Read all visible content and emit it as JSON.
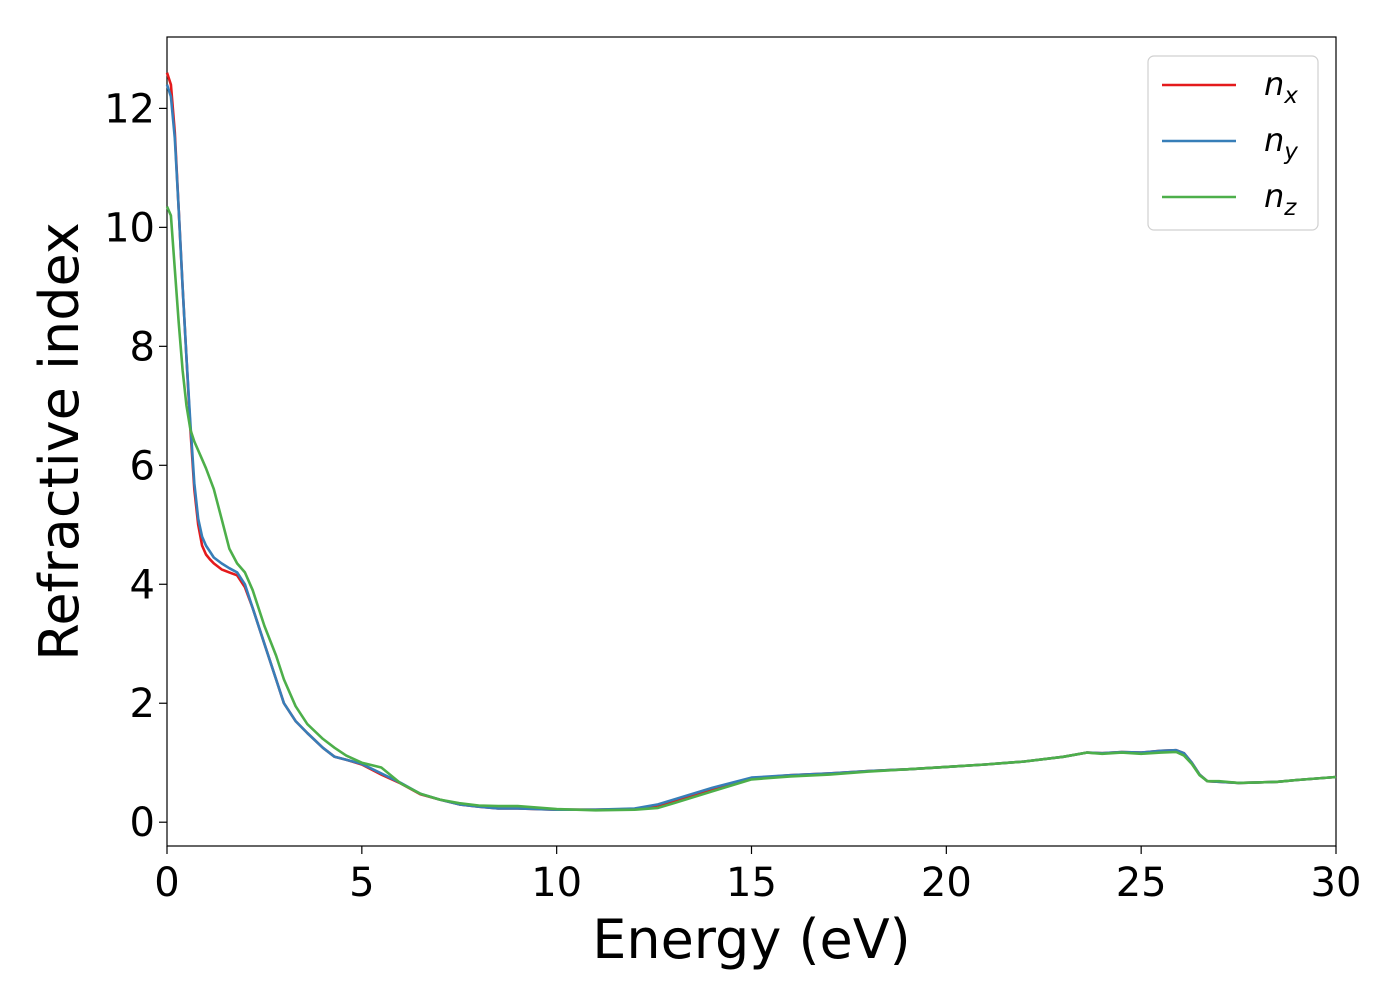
{
  "chart_data": {
    "type": "line",
    "title": "",
    "xlabel": "Energy (eV)",
    "ylabel": "Refractive index",
    "xlim": [
      0,
      30
    ],
    "ylim": [
      -0.4,
      13.2
    ],
    "xticks": [
      0,
      5,
      10,
      15,
      20,
      25,
      30
    ],
    "yticks": [
      0,
      2,
      4,
      6,
      8,
      10,
      12
    ],
    "grid": false,
    "legend_position": "top-right",
    "series": [
      {
        "name": "n",
        "subscript": "x",
        "color": "#e41a1c",
        "x": [
          0,
          0.1,
          0.2,
          0.3,
          0.4,
          0.5,
          0.6,
          0.7,
          0.8,
          0.9,
          1.0,
          1.1,
          1.2,
          1.4,
          1.6,
          1.8,
          2.0,
          2.2,
          2.5,
          2.8,
          3.0,
          3.3,
          3.6,
          4.0,
          4.3,
          4.6,
          5.0,
          5.5,
          6.0,
          6.5,
          7.0,
          7.5,
          8.0,
          8.5,
          9.0,
          10.0,
          11.0,
          12.0,
          12.6,
          13.0,
          14.0,
          15.0,
          16.0,
          17.0,
          18.0,
          19.0,
          20.0,
          21.0,
          22.0,
          23.0,
          23.6,
          24.0,
          24.5,
          25.0,
          25.5,
          25.9,
          26.1,
          26.3,
          26.5,
          26.7,
          27.0,
          27.5,
          28.0,
          28.5,
          29.0,
          30.0
        ],
        "y": [
          12.6,
          12.4,
          11.6,
          10.3,
          9.0,
          7.8,
          6.6,
          5.6,
          5.0,
          4.65,
          4.5,
          4.42,
          4.35,
          4.25,
          4.2,
          4.15,
          3.95,
          3.6,
          3.0,
          2.4,
          2.0,
          1.7,
          1.5,
          1.25,
          1.1,
          1.05,
          0.97,
          0.8,
          0.65,
          0.47,
          0.38,
          0.3,
          0.26,
          0.23,
          0.23,
          0.21,
          0.21,
          0.22,
          0.28,
          0.35,
          0.55,
          0.74,
          0.79,
          0.82,
          0.86,
          0.89,
          0.93,
          0.97,
          1.02,
          1.1,
          1.17,
          1.16,
          1.18,
          1.17,
          1.2,
          1.21,
          1.16,
          1.0,
          0.8,
          0.69,
          0.68,
          0.66,
          0.67,
          0.68,
          0.71,
          0.76
        ]
      },
      {
        "name": "n",
        "subscript": "y",
        "color": "#377eb8",
        "x": [
          0,
          0.1,
          0.2,
          0.3,
          0.4,
          0.5,
          0.6,
          0.7,
          0.8,
          0.9,
          1.0,
          1.1,
          1.2,
          1.4,
          1.6,
          1.8,
          2.0,
          2.2,
          2.5,
          2.8,
          3.0,
          3.3,
          3.6,
          4.0,
          4.3,
          4.6,
          5.0,
          5.5,
          6.0,
          6.5,
          7.0,
          7.5,
          8.0,
          8.5,
          9.0,
          10.0,
          11.0,
          12.0,
          12.6,
          13.0,
          14.0,
          15.0,
          16.0,
          17.0,
          18.0,
          19.0,
          20.0,
          21.0,
          22.0,
          23.0,
          23.6,
          24.0,
          24.5,
          25.0,
          25.5,
          25.9,
          26.1,
          26.3,
          26.5,
          26.7,
          27.0,
          27.5,
          28.0,
          28.5,
          29.0,
          30.0
        ],
        "y": [
          12.4,
          12.2,
          11.5,
          10.3,
          9.0,
          7.8,
          6.7,
          5.7,
          5.1,
          4.8,
          4.65,
          4.55,
          4.45,
          4.35,
          4.27,
          4.2,
          4.0,
          3.6,
          3.0,
          2.4,
          2.0,
          1.7,
          1.5,
          1.25,
          1.1,
          1.05,
          0.98,
          0.82,
          0.66,
          0.48,
          0.38,
          0.3,
          0.26,
          0.23,
          0.23,
          0.21,
          0.21,
          0.23,
          0.3,
          0.38,
          0.58,
          0.75,
          0.79,
          0.82,
          0.86,
          0.89,
          0.93,
          0.97,
          1.02,
          1.1,
          1.17,
          1.16,
          1.18,
          1.17,
          1.2,
          1.21,
          1.16,
          1.0,
          0.8,
          0.69,
          0.68,
          0.66,
          0.67,
          0.68,
          0.71,
          0.76
        ]
      },
      {
        "name": "n",
        "subscript": "z",
        "color": "#4daf4a",
        "x": [
          0,
          0.1,
          0.2,
          0.3,
          0.4,
          0.5,
          0.6,
          0.7,
          0.8,
          0.9,
          1.0,
          1.2,
          1.4,
          1.6,
          1.8,
          2.0,
          2.2,
          2.5,
          2.8,
          3.0,
          3.3,
          3.6,
          4.0,
          4.3,
          4.6,
          5.0,
          5.5,
          6.0,
          6.5,
          7.0,
          7.5,
          8.0,
          8.5,
          9.0,
          10.0,
          11.0,
          12.0,
          12.6,
          13.0,
          14.0,
          15.0,
          16.0,
          17.0,
          18.0,
          19.0,
          20.0,
          21.0,
          22.0,
          23.0,
          23.6,
          24.0,
          24.5,
          25.0,
          25.5,
          25.9,
          26.1,
          26.3,
          26.5,
          26.7,
          27.0,
          27.5,
          28.0,
          28.5,
          29.0,
          30.0
        ],
        "y": [
          10.35,
          10.2,
          9.3,
          8.4,
          7.6,
          7.0,
          6.6,
          6.4,
          6.25,
          6.1,
          5.95,
          5.6,
          5.1,
          4.6,
          4.35,
          4.2,
          3.9,
          3.3,
          2.8,
          2.4,
          1.95,
          1.65,
          1.4,
          1.25,
          1.12,
          1.0,
          0.92,
          0.65,
          0.48,
          0.38,
          0.32,
          0.28,
          0.27,
          0.27,
          0.22,
          0.2,
          0.21,
          0.24,
          0.32,
          0.52,
          0.72,
          0.77,
          0.8,
          0.85,
          0.89,
          0.93,
          0.97,
          1.02,
          1.1,
          1.17,
          1.15,
          1.17,
          1.15,
          1.17,
          1.18,
          1.12,
          0.98,
          0.79,
          0.69,
          0.69,
          0.66,
          0.67,
          0.68,
          0.71,
          0.76
        ]
      }
    ]
  }
}
